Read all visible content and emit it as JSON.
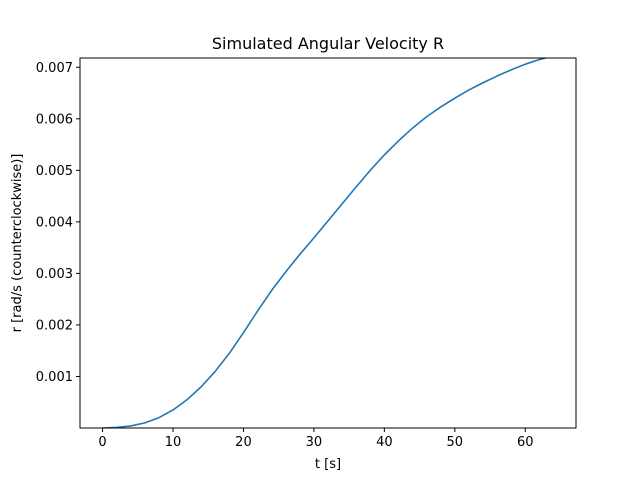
{
  "chart_data": {
    "type": "line",
    "title": "Simulated Angular Velocity R",
    "xlabel": "t [s]",
    "ylabel": "r [rad/s (counterclockwise)]",
    "xlim": [
      -3.2,
      67.2
    ],
    "ylim": [
      0.0,
      0.00718
    ],
    "x_ticks": [
      0,
      10,
      20,
      30,
      40,
      50,
      60
    ],
    "x_tick_labels": [
      "0",
      "10",
      "20",
      "30",
      "40",
      "50",
      "60"
    ],
    "y_ticks": [
      0.001,
      0.002,
      0.003,
      0.004,
      0.005,
      0.006,
      0.007
    ],
    "y_tick_labels": [
      "0.001",
      "0.002",
      "0.003",
      "0.004",
      "0.005",
      "0.006",
      "0.007"
    ],
    "grid": false,
    "legend": "none",
    "series": [
      {
        "color": "#1f77b4",
        "x": [
          0,
          2,
          4,
          6,
          8,
          10,
          12,
          14,
          16,
          18,
          20,
          22,
          24,
          26,
          28,
          30,
          32,
          34,
          36,
          38,
          40,
          42,
          44,
          46,
          48,
          50,
          52,
          54,
          56,
          58,
          60,
          62,
          64
        ],
        "y": [
          0.0,
          1e-05,
          4e-05,
          0.0001,
          0.0002,
          0.00035,
          0.00055,
          0.0008,
          0.0011,
          0.00145,
          0.00185,
          0.00227,
          0.00267,
          0.00303,
          0.00337,
          0.00369,
          0.00402,
          0.00435,
          0.00468,
          0.005,
          0.0053,
          0.00557,
          0.00582,
          0.00604,
          0.00623,
          0.0064,
          0.00656,
          0.0067,
          0.00683,
          0.00695,
          0.00706,
          0.00715,
          0.00722
        ]
      }
    ]
  }
}
